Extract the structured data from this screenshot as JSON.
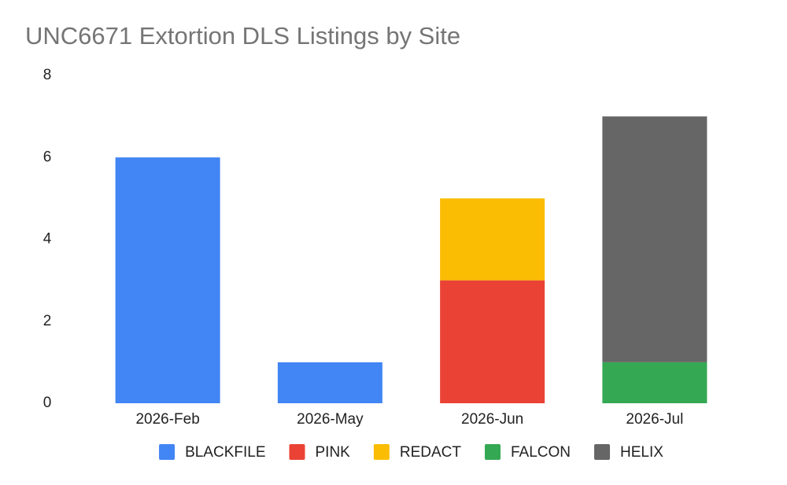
{
  "chart_data": {
    "type": "stacked_bar",
    "title": "UNC6671 Extortion DLS Listings by Site",
    "categories": [
      "2026-Feb",
      "2026-May",
      "2026-Jun",
      "2026-Jul"
    ],
    "series": [
      {
        "name": "BLACKFILE",
        "color": "#4285f4",
        "values": [
          6,
          1,
          null,
          null
        ]
      },
      {
        "name": "PINK",
        "color": "#ea4335",
        "values": [
          null,
          null,
          3,
          null
        ]
      },
      {
        "name": "REDACT",
        "color": "#fbbc04",
        "values": [
          null,
          null,
          2,
          null
        ]
      },
      {
        "name": "FALCON",
        "color": "#34a853",
        "values": [
          null,
          null,
          null,
          1
        ]
      },
      {
        "name": "HELIX",
        "color": "#666666",
        "values": [
          null,
          null,
          null,
          6
        ]
      }
    ],
    "ylim": [
      0,
      8
    ],
    "yticks": [
      0,
      2,
      4,
      6,
      8
    ],
    "grid": false,
    "legend": "bottom"
  }
}
